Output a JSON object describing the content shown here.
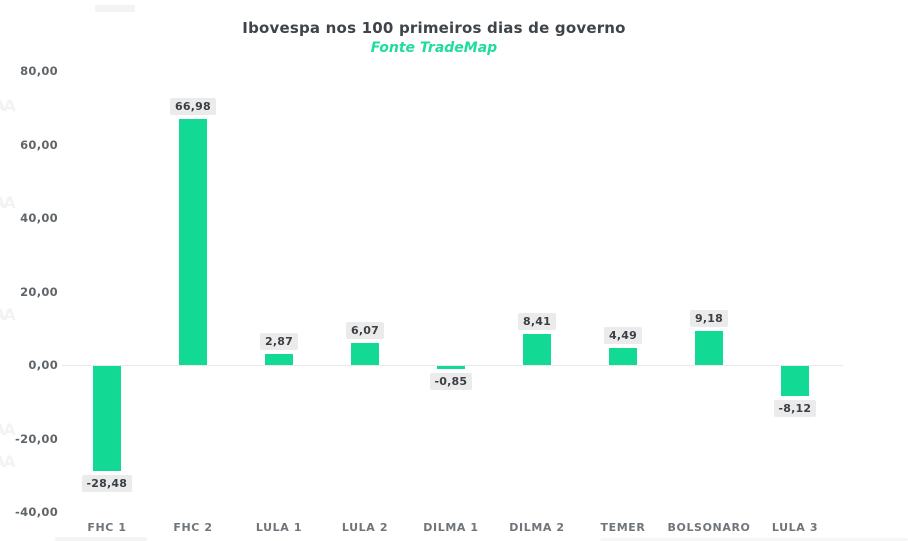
{
  "chart_data": {
    "type": "bar",
    "title": "Ibovespa nos 100 primeiros dias de governo",
    "subtitle": "Fonte TradeMap",
    "categories": [
      "FHC 1",
      "FHC 2",
      "LULA 1",
      "LULA 2",
      "DILMA 1",
      "DILMA 2",
      "TEMER",
      "BOLSONARO",
      "LULA 3"
    ],
    "values": [
      -28.48,
      66.98,
      2.87,
      6.07,
      -0.85,
      8.41,
      4.49,
      9.18,
      -8.12
    ],
    "value_labels": [
      "-28,48",
      "66,98",
      "2,87",
      "6,07",
      "-0,85",
      "8,41",
      "4,49",
      "9,18",
      "-8,12"
    ],
    "xlabel": "",
    "ylabel": "",
    "ylim": [
      -40,
      80
    ],
    "y_tick_values": [
      80,
      60,
      40,
      20,
      0,
      -20,
      -40
    ],
    "y_tick_labels": [
      "80,00",
      "60,00",
      "40,00",
      "20,00",
      "0,00",
      "-20,00",
      "-40,00"
    ],
    "grid": false,
    "legend": false,
    "bar_color": "#12d993",
    "subtitle_color": "#1fdc9d",
    "value_label_bg": "#ebebeb",
    "value_label_text": "#3a3f45"
  }
}
